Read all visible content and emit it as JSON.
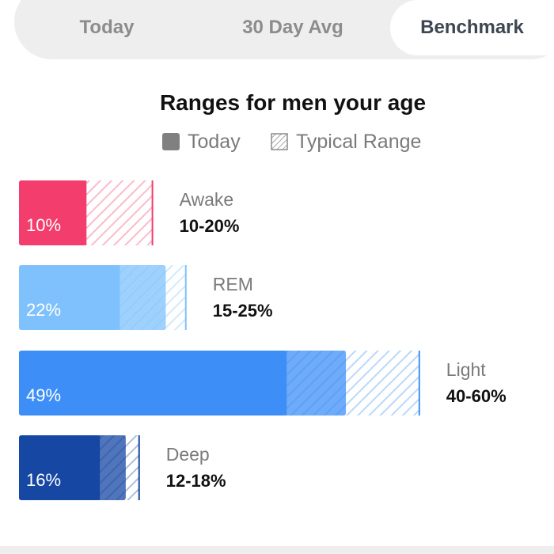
{
  "tabs": [
    {
      "label": "Today",
      "active": false
    },
    {
      "label": "30 Day Avg",
      "active": false
    },
    {
      "label": "Benchmark",
      "active": true
    }
  ],
  "legend": {
    "today_label": "Today",
    "typical_label": "Typical Range"
  },
  "chart_data": {
    "type": "bar",
    "title": "Ranges for men your age",
    "categories": [
      "Awake",
      "REM",
      "Light",
      "Deep"
    ],
    "series": [
      {
        "name": "Today",
        "values": [
          10,
          22,
          49,
          16
        ]
      }
    ],
    "value_labels": [
      "10%",
      "22%",
      "49%",
      "16%"
    ],
    "typical_range": [
      [
        10,
        20
      ],
      [
        15,
        25
      ],
      [
        40,
        60
      ],
      [
        12,
        18
      ]
    ],
    "range_labels": [
      "10-20%",
      "15-25%",
      "40-60%",
      "12-18%"
    ],
    "colors": [
      "#f23d6d",
      "#7fc1fc",
      "#3d8ff7",
      "#1647a3"
    ],
    "xlim": [
      0,
      60
    ]
  }
}
